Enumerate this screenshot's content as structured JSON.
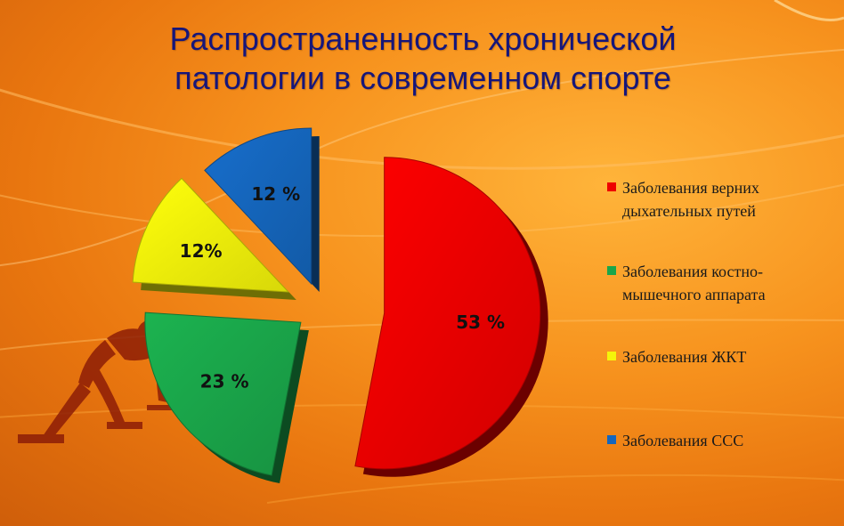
{
  "title": {
    "line1": "Распространенность хронической",
    "line2": "патологии в современном спорте"
  },
  "chart_data": {
    "type": "pie",
    "title": "Распространенность хронической патологии в современном спорте",
    "legend_position": "right",
    "series": [
      {
        "name": "",
        "slices": [
          {
            "label": "Заболевания верних дыхательных путей",
            "value": 53,
            "display": "53 %",
            "color": "#ee0000"
          },
          {
            "label": "Заболевания костно-мышечного аппарата",
            "value": 23,
            "display": "23 %",
            "color": "#1aa64a"
          },
          {
            "label": "Заболевания ЖКТ",
            "value": 12,
            "display": "12%",
            "color": "#f5f50a"
          },
          {
            "label": "Заболевания ССС",
            "value": 12,
            "display": "12 %",
            "color": "#1566bd"
          }
        ]
      }
    ]
  },
  "legend": {
    "items": [
      {
        "line1": "Заболевания верних",
        "line2": "дыхательных путей",
        "color": "#ee0000"
      },
      {
        "line1": "Заболевания костно-",
        "line2": "мышечного аппарата",
        "color": "#1aa64a"
      },
      {
        "line1": "Заболевания ЖКТ",
        "line2": "",
        "color": "#f5f50a"
      },
      {
        "line1": "Заболевания ССС",
        "line2": "",
        "color": "#1566bd"
      }
    ]
  },
  "decor": {
    "figure_icon": "sprinter-silhouette-icon"
  }
}
